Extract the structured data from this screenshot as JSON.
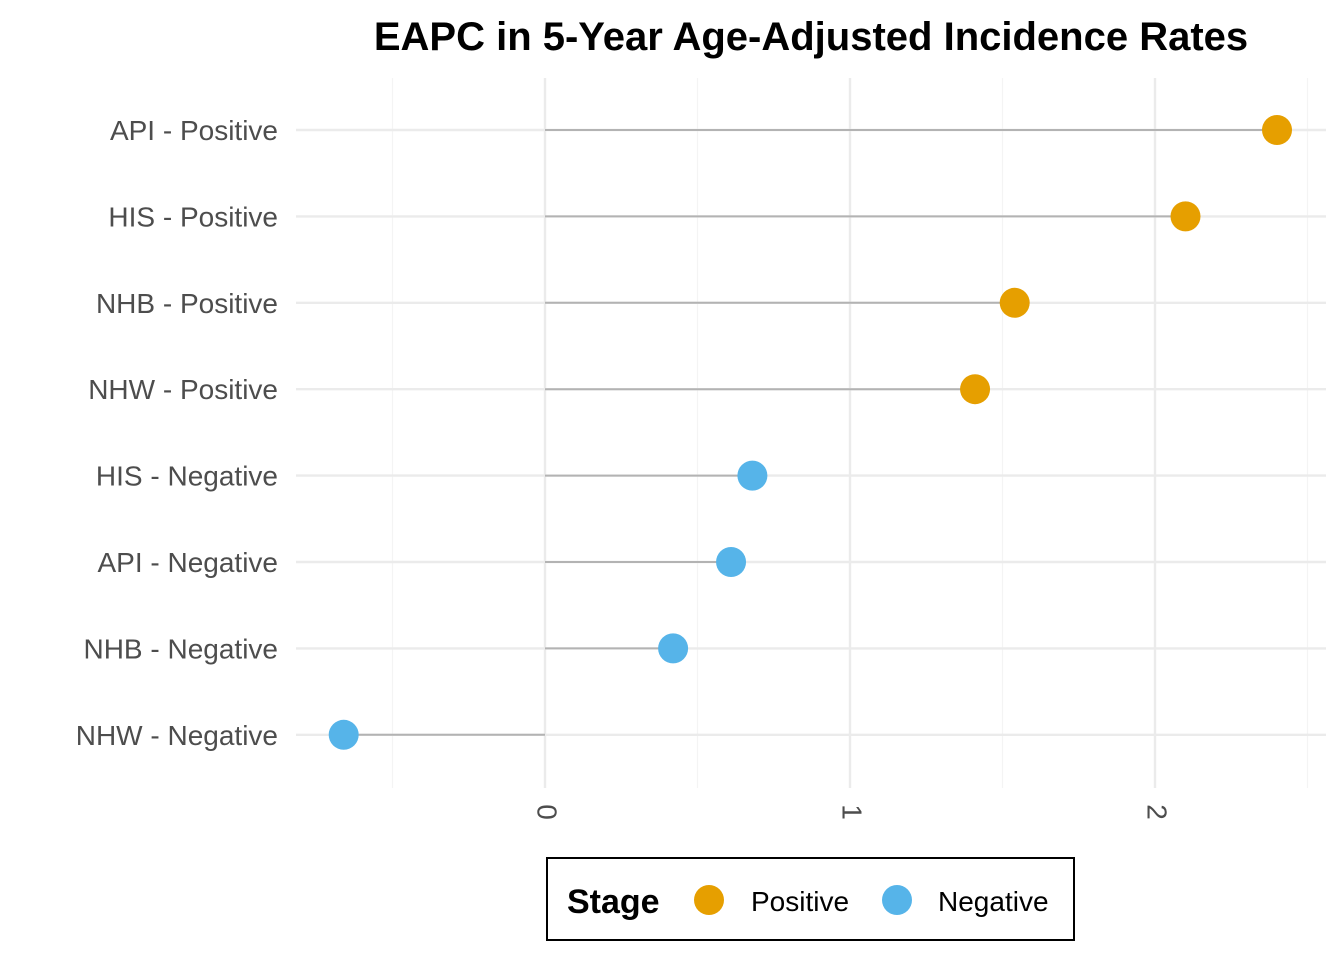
{
  "chart_data": {
    "type": "lollipop",
    "title": "EAPC in 5-Year Age-Adjusted Incidence Rates",
    "xlabel": "",
    "ylabel": "",
    "xlim": [
      -0.82,
      2.52
    ],
    "x_ticks": [
      0,
      1,
      2
    ],
    "x_tick_labels": [
      "0",
      "1",
      "2"
    ],
    "grid": true,
    "legend": {
      "title": "Stage",
      "placement": "bottom",
      "entries": [
        {
          "label": "Positive",
          "color": "#E69F00"
        },
        {
          "label": "Negative",
          "color": "#56B4E9"
        }
      ]
    },
    "categories": [
      "API - Positive",
      "HIS - Positive",
      "NHB - Positive",
      "NHW - Positive",
      "HIS - Negative",
      "API - Negative",
      "NHB - Negative",
      "NHW - Negative"
    ],
    "values": [
      2.4,
      2.1,
      1.54,
      1.41,
      0.68,
      0.61,
      0.42,
      -0.66
    ],
    "stage": [
      "Positive",
      "Positive",
      "Positive",
      "Positive",
      "Negative",
      "Negative",
      "Negative",
      "Negative"
    ]
  }
}
